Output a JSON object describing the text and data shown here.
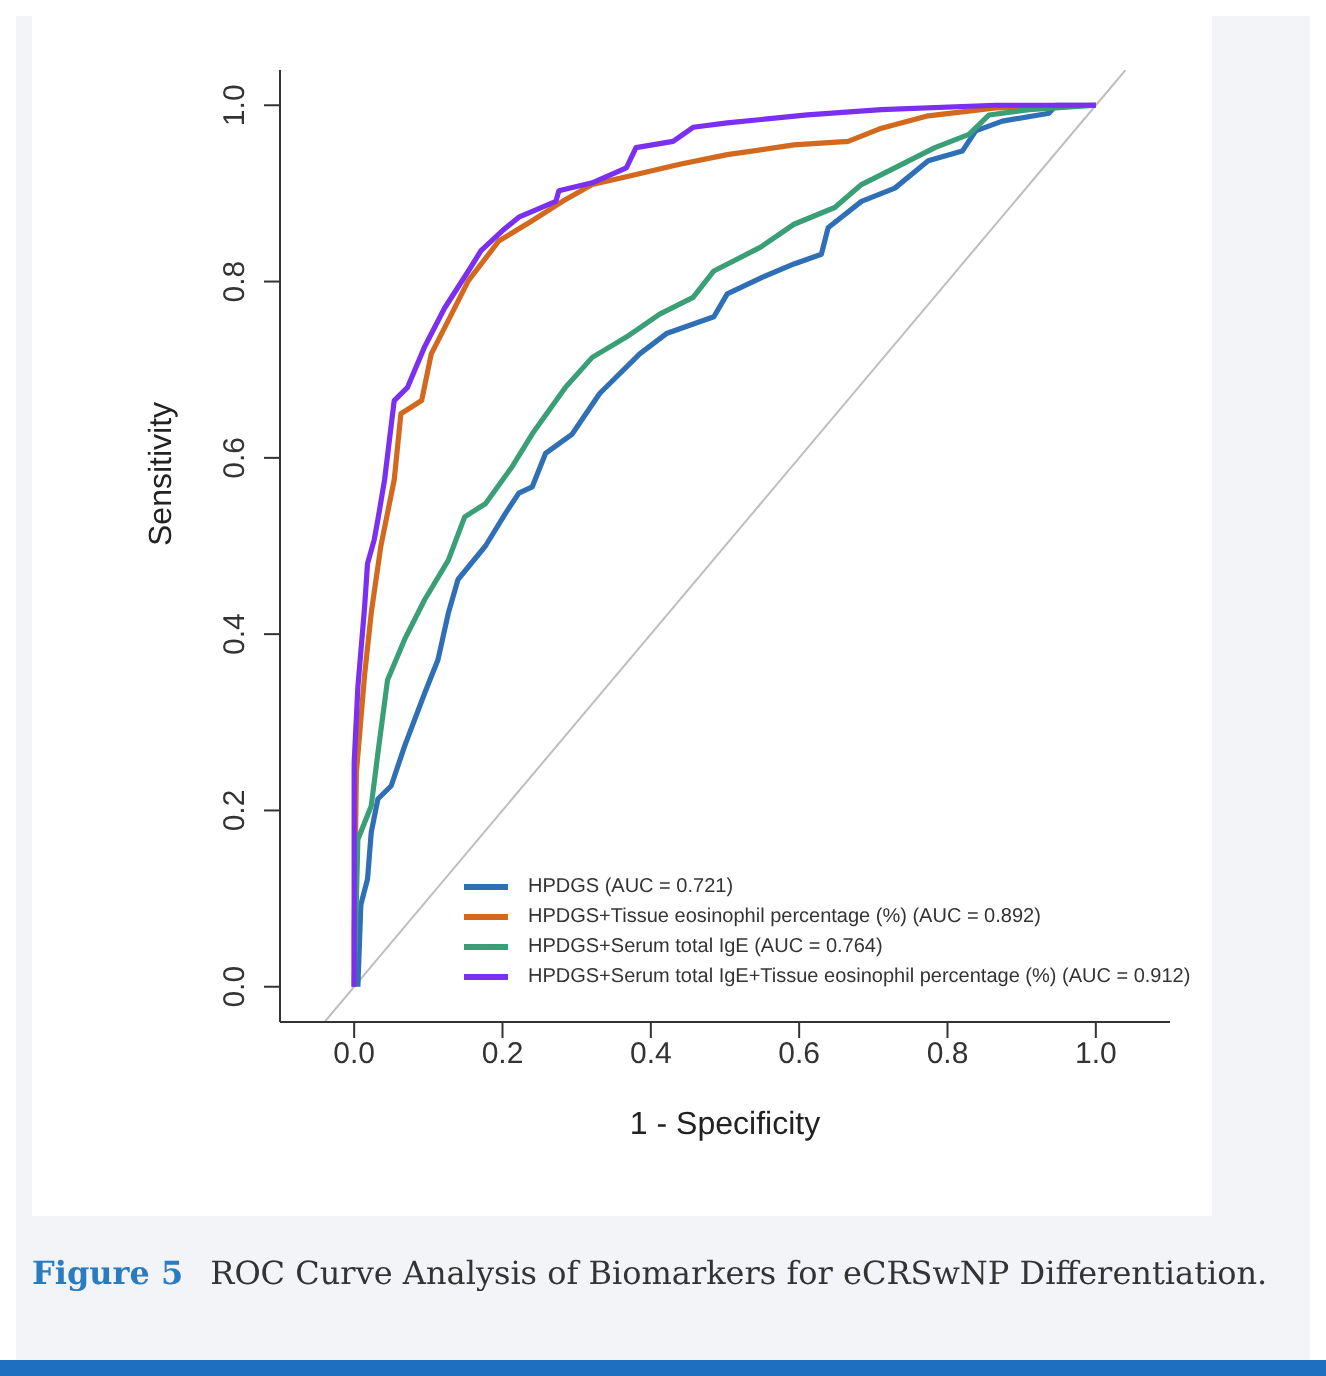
{
  "chart_data": {
    "type": "line",
    "xlabel": "1 - Specificity",
    "ylabel": "Sensitivity",
    "xlim": [
      -0.1,
      1.1
    ],
    "ylim": [
      -0.04,
      1.04
    ],
    "xticks": [
      {
        "value": 0,
        "label": "0.0"
      },
      0.2,
      0.4,
      0.6,
      0.8,
      {
        "value": 1,
        "label": "1.0"
      }
    ],
    "yticks": [
      {
        "value": 0,
        "label": "0.0"
      },
      0.2,
      0.4,
      0.6,
      0.8,
      {
        "value": 1,
        "label": "1.0"
      }
    ],
    "grid": false,
    "legend": "bottom right",
    "marker": "none",
    "line_style": "solid",
    "annotations": [
      "Figure 5",
      "ROC Curve Analysis of Biomarkers for eCRSwNP Differentiation."
    ],
    "series": [
      {
        "type": "line",
        "color": "#bebebe",
        "x": [
          -0.04,
          1.04
        ],
        "values": [
          -0.04,
          1.04
        ]
      },
      {
        "name": "HPDGS (AUC = 0.721)",
        "color": "#2f6fb5",
        "x": [
          0.005,
          0.009,
          0.018,
          0.023,
          0.032,
          0.05,
          0.068,
          0.095,
          0.113,
          0.127,
          0.14,
          0.177,
          0.204,
          0.222,
          0.24,
          0.258,
          0.294,
          0.331,
          0.385,
          0.421,
          0.485,
          0.503,
          0.548,
          0.593,
          0.63,
          0.639,
          0.684,
          0.729,
          0.774,
          0.82,
          0.838,
          0.874,
          0.937,
          0.946,
          1
        ],
        "values": [
          0,
          0.093,
          0.122,
          0.175,
          0.213,
          0.228,
          0.273,
          0.333,
          0.371,
          0.424,
          0.462,
          0.5,
          0.537,
          0.56,
          0.567,
          0.605,
          0.627,
          0.673,
          0.718,
          0.741,
          0.76,
          0.786,
          0.804,
          0.82,
          0.831,
          0.861,
          0.891,
          0.906,
          0.937,
          0.948,
          0.971,
          0.982,
          0.991,
          1,
          1
        ]
      },
      {
        "name": "HPDGS+Tissue eosinophil percentage (%) (AUC = 0.892)",
        "color": "#d2691e",
        "x": [
          0,
          0,
          0.003,
          0.014,
          0.023,
          0.036,
          0.054,
          0.063,
          0.091,
          0.104,
          0.127,
          0.154,
          0.195,
          0.24,
          0.281,
          0.321,
          0.367,
          0.439,
          0.503,
          0.593,
          0.666,
          0.711,
          0.774,
          0.865,
          1
        ],
        "values": [
          0,
          0.062,
          0.243,
          0.353,
          0.424,
          0.5,
          0.575,
          0.65,
          0.665,
          0.718,
          0.756,
          0.801,
          0.846,
          0.869,
          0.891,
          0.91,
          0.919,
          0.933,
          0.944,
          0.955,
          0.959,
          0.974,
          0.988,
          0.997,
          1
        ]
      },
      {
        "name": "HPDGS+Serum total IgE (AUC = 0.764)",
        "color": "#3a9e77",
        "x": [
          0,
          0.005,
          0.023,
          0.032,
          0.045,
          0.068,
          0.095,
          0.127,
          0.149,
          0.177,
          0.213,
          0.24,
          0.285,
          0.321,
          0.367,
          0.412,
          0.457,
          0.485,
          0.548,
          0.593,
          0.648,
          0.684,
          0.729,
          0.783,
          0.829,
          0.856,
          0.91,
          1
        ],
        "values": [
          0,
          0.167,
          0.205,
          0.265,
          0.348,
          0.394,
          0.439,
          0.484,
          0.533,
          0.548,
          0.59,
          0.627,
          0.68,
          0.714,
          0.737,
          0.763,
          0.782,
          0.812,
          0.839,
          0.865,
          0.884,
          0.91,
          0.929,
          0.952,
          0.967,
          0.989,
          0.995,
          1
        ]
      },
      {
        "name": "HPDGS+Serum total IgE+Tissue eosinophil percentage (%) (AUC = 0.912)",
        "color": "#7b2ff0",
        "x": [
          0,
          0,
          0,
          0.005,
          0.014,
          0.018,
          0.027,
          0.032,
          0.041,
          0.054,
          0.072,
          0.095,
          0.122,
          0.154,
          0.171,
          0.199,
          0.222,
          0.272,
          0.276,
          0.321,
          0.367,
          0.38,
          0.43,
          0.457,
          0.503,
          0.611,
          0.711,
          0.865,
          1
        ],
        "values": [
          0,
          0.107,
          0.254,
          0.34,
          0.43,
          0.48,
          0.507,
          0.53,
          0.575,
          0.665,
          0.68,
          0.726,
          0.77,
          0.812,
          0.835,
          0.857,
          0.873,
          0.891,
          0.903,
          0.912,
          0.929,
          0.952,
          0.959,
          0.975,
          0.98,
          0.989,
          0.995,
          1,
          1
        ]
      }
    ]
  }
}
